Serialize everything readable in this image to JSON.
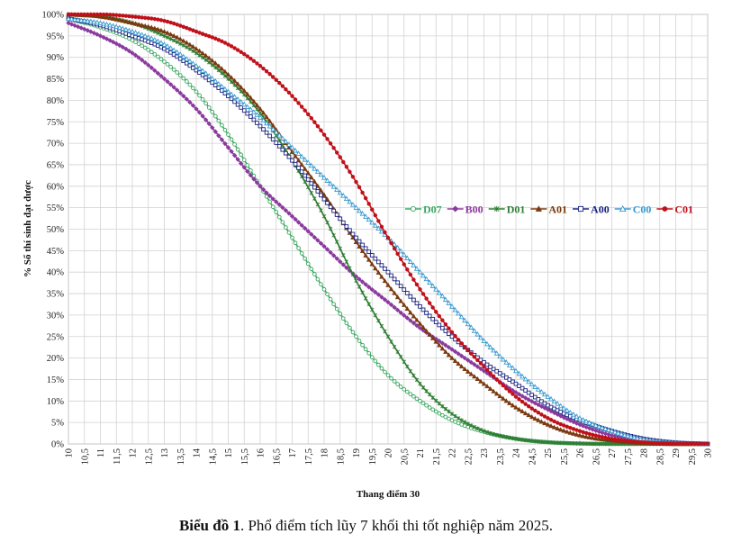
{
  "caption": {
    "label": "Biểu đồ 1",
    "text": ". Phổ điểm tích lũy 7 khối thi tốt nghiệp năm 2025."
  },
  "chart_data": {
    "type": "line",
    "xlabel": "Thang điểm 30",
    "ylabel": "% Số thí sinh đạt được",
    "xlim": [
      10,
      30
    ],
    "ylim": [
      0,
      100
    ],
    "x_tick_step": 0.5,
    "y_tick_step": 5,
    "y_tick_suffix": "%",
    "grid": true,
    "legend_position": "right-middle",
    "x": [
      10,
      11,
      12,
      13,
      14,
      15,
      16,
      17,
      18,
      19,
      20,
      21,
      22,
      23,
      24,
      25,
      26,
      27,
      28,
      29,
      30
    ],
    "series": [
      {
        "name": "D07",
        "color": "#3aa860",
        "marker": "circle-open",
        "values": [
          99,
          97,
          94,
          89,
          82,
          72,
          60,
          48,
          36,
          25,
          16,
          10,
          5.5,
          2.8,
          1.2,
          0.4,
          0.1,
          0,
          0,
          0,
          0
        ]
      },
      {
        "name": "B00",
        "color": "#8b3a9e",
        "marker": "diamond",
        "values": [
          98,
          95,
          91,
          85,
          78,
          69,
          60,
          53,
          46,
          39,
          33,
          27,
          22,
          17,
          12,
          8,
          4.5,
          2,
          0.8,
          0.2,
          0
        ]
      },
      {
        "name": "D01",
        "color": "#2e7d32",
        "marker": "star",
        "values": [
          100,
          99.5,
          98,
          95,
          91,
          85,
          77,
          66,
          53,
          38,
          25,
          14,
          7,
          3,
          1.2,
          0.4,
          0.1,
          0,
          0,
          0,
          0
        ]
      },
      {
        "name": "A01",
        "color": "#7b3a10",
        "marker": "triangle",
        "values": [
          100,
          99.5,
          98,
          96,
          92,
          86,
          78,
          68,
          58,
          47,
          37,
          28,
          20,
          14,
          8.5,
          4.5,
          2,
          0.8,
          0.2,
          0,
          0
        ]
      },
      {
        "name": "A00",
        "color": "#1a237e",
        "marker": "square-open",
        "values": [
          99,
          97.5,
          95,
          92,
          87,
          81,
          74,
          66,
          57,
          48,
          40,
          32,
          25,
          19,
          14,
          9,
          5.5,
          3,
          1.2,
          0.3,
          0
        ]
      },
      {
        "name": "C00",
        "color": "#3a9ad0",
        "marker": "triangle-open",
        "values": [
          99,
          98,
          96,
          93,
          88,
          82,
          76,
          69,
          62,
          55,
          48,
          40,
          32,
          24,
          17,
          11,
          6,
          3,
          1,
          0.3,
          0
        ]
      },
      {
        "name": "C01",
        "color": "#c0101a",
        "marker": "circle",
        "values": [
          100,
          100,
          99.5,
          98.5,
          96,
          93,
          88,
          81,
          72,
          61,
          48,
          36,
          26,
          18,
          11,
          6,
          3,
          1.2,
          0.4,
          0.1,
          0
        ]
      }
    ]
  }
}
